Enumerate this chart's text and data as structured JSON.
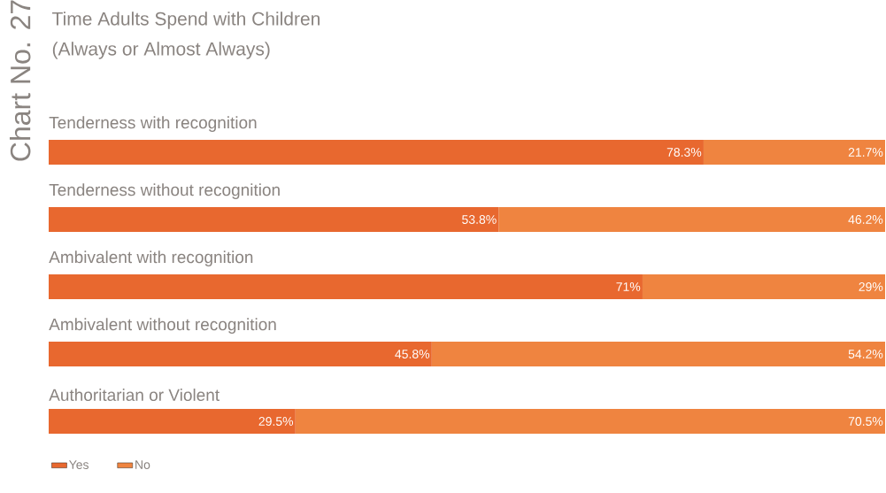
{
  "chart_data": {
    "type": "bar",
    "orientation": "horizontal",
    "stacked": true,
    "title": "Time Adults Spend with Children",
    "subtitle": "(Always or Almost Always)",
    "annotations": [
      "Chart No. 27"
    ],
    "categories": [
      "Tenderness with recognition",
      "Tenderness without recognition",
      "Ambivalent with recognition",
      "Ambivalent without recognition",
      "Authoritarian or Violent"
    ],
    "xlim": [
      0,
      100
    ],
    "series": [
      {
        "name": "Yes",
        "color": "#e8682f",
        "values": [
          78.3,
          53.8,
          71,
          45.8,
          29.5
        ],
        "value_labels": [
          "78.3%",
          "53.8%",
          "71%",
          "45.8%",
          "29.5%"
        ]
      },
      {
        "name": "No",
        "color": "#ef8440",
        "values": [
          21.7,
          46.2,
          29,
          54.2,
          70.5
        ],
        "value_labels": [
          "21.7%",
          "46.2%",
          "29%",
          "54.2%",
          "70.5%"
        ]
      }
    ],
    "legend": "bottom left"
  }
}
